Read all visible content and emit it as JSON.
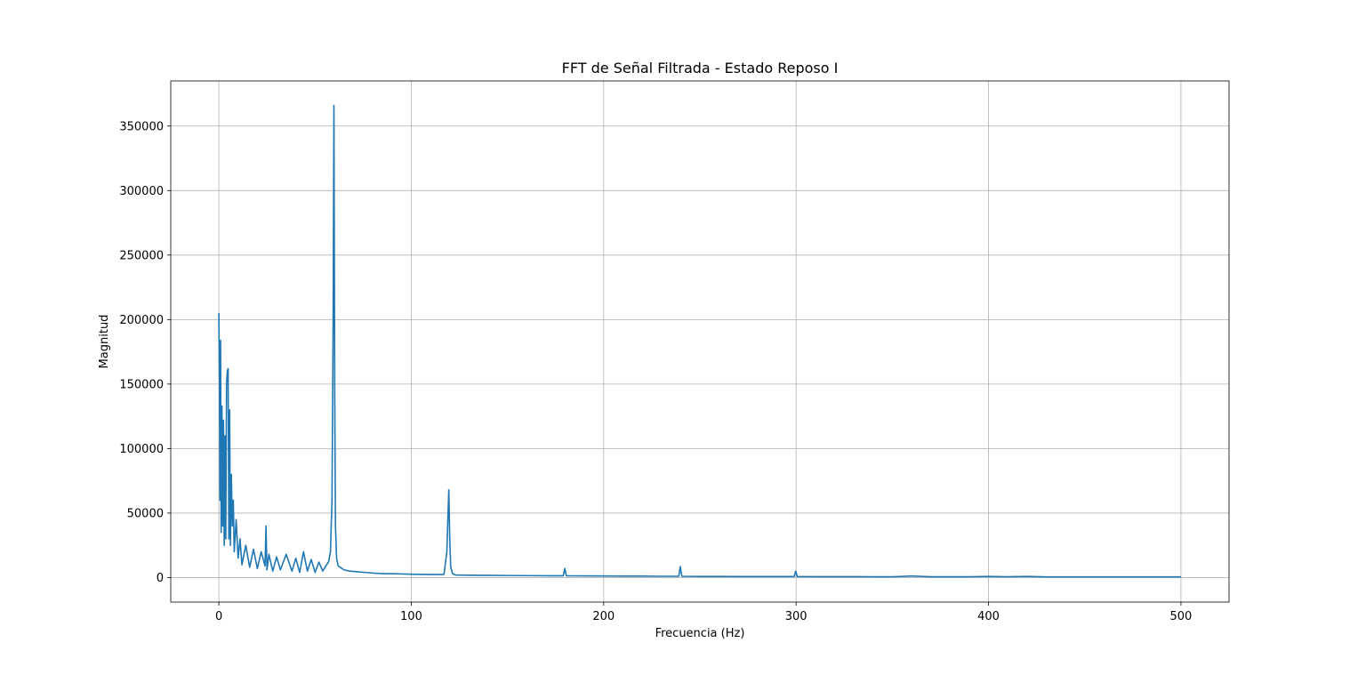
{
  "chart_data": {
    "type": "line",
    "title": "FFT de Señal Filtrada - Estado Reposo I",
    "xlabel": "Frecuencia (Hz)",
    "ylabel": "Magnitud",
    "xlim": [
      -25,
      525
    ],
    "ylim": [
      -19000,
      385000
    ],
    "xticks": [
      0,
      100,
      200,
      300,
      400,
      500
    ],
    "yticks": [
      0,
      50000,
      100000,
      150000,
      200000,
      250000,
      300000,
      350000
    ],
    "grid": true,
    "line_color": "#1f77b4",
    "series": [
      {
        "x": [
          0,
          0.3,
          0.6,
          0.9,
          1.2,
          1.6,
          2.0,
          2.4,
          2.8,
          3.2,
          3.6,
          4.0,
          4.4,
          4.8,
          5.2,
          5.6,
          6.0,
          6.5,
          7.0,
          7.5,
          8.0,
          9.0,
          10.0,
          11.0,
          12.0,
          14.0,
          16.0,
          18.0,
          20.0,
          22.0,
          24.0,
          24.5,
          25.0,
          26.0,
          28.0,
          30.0,
          32.0,
          35.0,
          38.0,
          40.0,
          42.0,
          44.0,
          46.0,
          48.0,
          50.0,
          52.0,
          54.0,
          56.0,
          57.0,
          58.0,
          58.8,
          59.4,
          59.8,
          60.2,
          60.6,
          61.2,
          62.0,
          63.0,
          65.0,
          68.0,
          72.0,
          76.0,
          80.0,
          85.0,
          90.0,
          95.0,
          100.0,
          105.0,
          110.0,
          115.0,
          117.0,
          118.5,
          119.5,
          120.0,
          120.5,
          121.5,
          123.0,
          130.0,
          140.0,
          150.0,
          160.0,
          170.0,
          179.0,
          179.8,
          180.6,
          190.0,
          200.0,
          210.0,
          220.0,
          230.0,
          239.0,
          239.8,
          240.6,
          250.0,
          260.0,
          270.0,
          280.0,
          290.0,
          299.0,
          299.8,
          300.6,
          310.0,
          320.0,
          330.0,
          340.0,
          350.0,
          360.0,
          370.0,
          380.0,
          390.0,
          400.0,
          410.0,
          420.0,
          430.0,
          440.0,
          450.0,
          460.0,
          470.0,
          480.0,
          490.0,
          500.0
        ],
        "values": [
          205000,
          150000,
          60000,
          184000,
          35000,
          133000,
          40000,
          122000,
          25000,
          110000,
          30000,
          150000,
          160000,
          162000,
          30000,
          130000,
          25000,
          80000,
          40000,
          60000,
          20000,
          45000,
          15000,
          30000,
          10000,
          25000,
          8000,
          22000,
          7000,
          20000,
          9000,
          40000,
          6000,
          18000,
          5000,
          16000,
          6000,
          18000,
          5000,
          15000,
          4000,
          20000,
          5000,
          14000,
          4000,
          12000,
          5000,
          10000,
          12000,
          20000,
          60000,
          200000,
          366000,
          150000,
          40000,
          15000,
          9000,
          8000,
          6000,
          5000,
          4500,
          4000,
          3500,
          3000,
          3000,
          2800,
          2600,
          2500,
          2400,
          2300,
          2500,
          20000,
          68000,
          30000,
          8000,
          3000,
          2000,
          1800,
          1700,
          1600,
          1500,
          1400,
          1400,
          7000,
          1400,
          1300,
          1200,
          1100,
          1100,
          1000,
          1000,
          8500,
          1000,
          900,
          900,
          800,
          800,
          800,
          800,
          5000,
          800,
          700,
          700,
          700,
          600,
          600,
          1200,
          600,
          600,
          600,
          900,
          600,
          900,
          500,
          500,
          500,
          500,
          500,
          500,
          500,
          500
        ]
      }
    ]
  }
}
